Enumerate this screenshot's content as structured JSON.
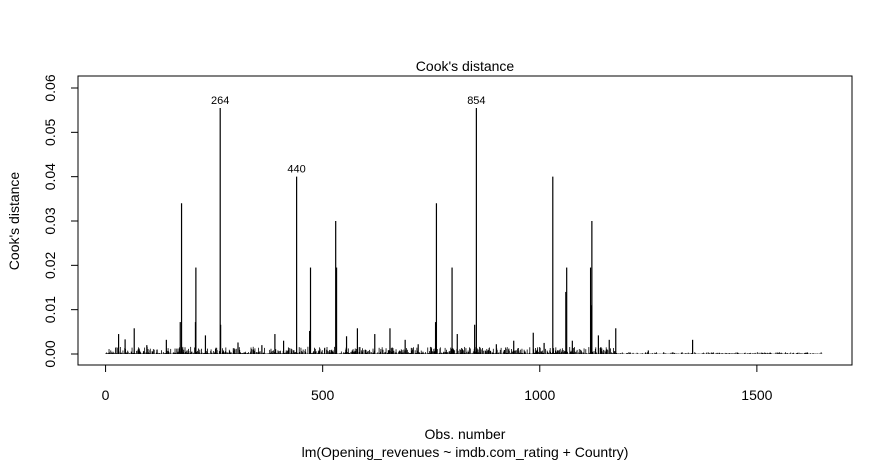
{
  "chart_data": {
    "type": "bar",
    "title": "Cook's distance",
    "xlabel": "Obs. number",
    "subtitle": "lm(Opening_revenues ~ imdb.com_rating + Country)",
    "ylabel": "Cook's distance",
    "xlim": [
      1,
      1650
    ],
    "ylim": [
      0,
      0.06
    ],
    "x_ticks": [
      0,
      500,
      1000,
      1500
    ],
    "y_ticks": [
      0.0,
      0.01,
      0.02,
      0.03,
      0.04,
      0.05,
      0.06
    ],
    "y_tick_labels": [
      "0.00",
      "0.01",
      "0.02",
      "0.03",
      "0.04",
      "0.05",
      "0.06"
    ],
    "spikes": [
      {
        "x": 175,
        "y": 0.034
      },
      {
        "x": 208,
        "y": 0.0195
      },
      {
        "x": 264,
        "y": 0.0555,
        "label": "264"
      },
      {
        "x": 440,
        "y": 0.04,
        "label": "440"
      },
      {
        "x": 472,
        "y": 0.0195
      },
      {
        "x": 530,
        "y": 0.03
      },
      {
        "x": 532,
        "y": 0.0195
      },
      {
        "x": 762,
        "y": 0.034
      },
      {
        "x": 798,
        "y": 0.0195
      },
      {
        "x": 854,
        "y": 0.0555,
        "label": "854"
      },
      {
        "x": 1030,
        "y": 0.04
      },
      {
        "x": 1062,
        "y": 0.0195
      },
      {
        "x": 1060,
        "y": 0.014
      },
      {
        "x": 1117,
        "y": 0.0195
      },
      {
        "x": 1120,
        "y": 0.03
      },
      {
        "x": 1119,
        "y": 0.011
      },
      {
        "x": 172,
        "y": 0.0072
      },
      {
        "x": 760,
        "y": 0.0072
      },
      {
        "x": 207,
        "y": 0.0072
      },
      {
        "x": 265,
        "y": 0.0066
      },
      {
        "x": 850,
        "y": 0.0066
      },
      {
        "x": 1175,
        "y": 0.0058
      },
      {
        "x": 66,
        "y": 0.0058
      },
      {
        "x": 655,
        "y": 0.0058
      },
      {
        "x": 580,
        "y": 0.0058
      },
      {
        "x": 985,
        "y": 0.0048
      },
      {
        "x": 30,
        "y": 0.0045
      },
      {
        "x": 390,
        "y": 0.0045
      },
      {
        "x": 620,
        "y": 0.0045
      },
      {
        "x": 810,
        "y": 0.0045
      },
      {
        "x": 1135,
        "y": 0.0042
      },
      {
        "x": 470,
        "y": 0.0052
      },
      {
        "x": 555,
        "y": 0.004
      },
      {
        "x": 45,
        "y": 0.0033
      },
      {
        "x": 140,
        "y": 0.0032
      },
      {
        "x": 230,
        "y": 0.0042
      },
      {
        "x": 305,
        "y": 0.0026
      },
      {
        "x": 410,
        "y": 0.003
      },
      {
        "x": 690,
        "y": 0.0032
      },
      {
        "x": 940,
        "y": 0.003
      },
      {
        "x": 1075,
        "y": 0.003
      },
      {
        "x": 1160,
        "y": 0.0032
      },
      {
        "x": 1352,
        "y": 0.0032
      },
      {
        "x": 95,
        "y": 0.002
      },
      {
        "x": 360,
        "y": 0.002
      },
      {
        "x": 720,
        "y": 0.0022
      },
      {
        "x": 900,
        "y": 0.0022
      },
      {
        "x": 1010,
        "y": 0.0025
      },
      {
        "x": 1250,
        "y": 0.0008
      }
    ]
  }
}
